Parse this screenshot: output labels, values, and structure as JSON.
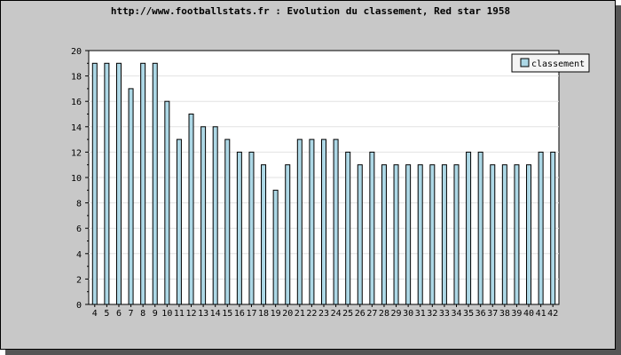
{
  "chart_data": {
    "type": "bar",
    "title": "http://www.footballstats.fr : Evolution du classement, Red star 1958",
    "xlabel": "",
    "ylabel": "",
    "ylim": [
      0,
      20
    ],
    "yticks": [
      0,
      2,
      4,
      6,
      8,
      10,
      12,
      14,
      16,
      18,
      20
    ],
    "grid": true,
    "legend_position": "top-right",
    "categories": [
      "4",
      "5",
      "6",
      "7",
      "8",
      "9",
      "10",
      "11",
      "12",
      "13",
      "14",
      "15",
      "16",
      "17",
      "18",
      "19",
      "20",
      "21",
      "22",
      "23",
      "24",
      "25",
      "26",
      "27",
      "28",
      "29",
      "30",
      "31",
      "32",
      "33",
      "34",
      "35",
      "36",
      "37",
      "38",
      "39",
      "40",
      "41",
      "42"
    ],
    "series": [
      {
        "name": "classement",
        "color": "#add8e6",
        "values": [
          19,
          19,
          19,
          17,
          19,
          19,
          16,
          13,
          15,
          14,
          14,
          13,
          12,
          12,
          11,
          9,
          11,
          13,
          13,
          13,
          13,
          12,
          11,
          12,
          11,
          11,
          11,
          11,
          11,
          11,
          11,
          12,
          12,
          11,
          11,
          11,
          11,
          12,
          12
        ]
      }
    ]
  },
  "colors": {
    "background": "#c8c8c8",
    "plot_area": "#ffffff",
    "bar_fill": "#add8e6",
    "bar_stroke": "#000000"
  }
}
